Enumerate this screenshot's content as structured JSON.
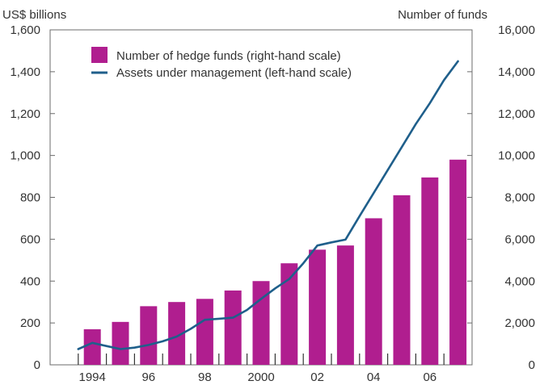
{
  "chart_data": {
    "type": "bar+line",
    "left_axis_title": "US$ billions",
    "right_axis_title": "Number of funds",
    "left_ylim": [
      0,
      1600
    ],
    "right_ylim": [
      0,
      16000
    ],
    "left_ticks": [
      "0",
      "200",
      "400",
      "600",
      "800",
      "1,000",
      "1,200",
      "1,400",
      "1,600"
    ],
    "right_ticks": [
      "0",
      "2,000",
      "4,000",
      "6,000",
      "8,000",
      "10,000",
      "12,000",
      "14,000",
      "16,000"
    ],
    "x_tick_labels": [
      "1994",
      "96",
      "98",
      "2000",
      "02",
      "04",
      "06"
    ],
    "categories": [
      "1994",
      "1995",
      "1996",
      "1997",
      "1998",
      "1999",
      "2000",
      "2001",
      "2002",
      "2003",
      "2004",
      "2005",
      "2006",
      "2007"
    ],
    "series": [
      {
        "name": "Number of hedge funds (right-hand scale)",
        "type": "bar",
        "axis": "right",
        "color": "#b01e8f",
        "values": [
          1700,
          2050,
          2800,
          3000,
          3150,
          3550,
          4000,
          4850,
          5500,
          5700,
          7000,
          8100,
          8950,
          9800
        ]
      },
      {
        "name": "Assets under management (left-hand scale)",
        "type": "line",
        "axis": "left",
        "color": "#1f5f8b",
        "x": [
          1993.5,
          1994,
          1994.5,
          1995,
          1995.5,
          1996,
          1996.5,
          1997,
          1997.5,
          1998,
          1998.5,
          1999,
          1999.5,
          2000,
          2000.5,
          2001,
          2001.5,
          2002,
          2002.5,
          2003,
          2003.5,
          2004,
          2004.5,
          2005,
          2005.5,
          2006,
          2006.5,
          2007
        ],
        "values": [
          75,
          105,
          90,
          75,
          82,
          95,
          112,
          135,
          172,
          215,
          220,
          225,
          262,
          315,
          365,
          410,
          485,
          570,
          585,
          598,
          710,
          820,
          930,
          1040,
          1150,
          1250,
          1360,
          1450
        ]
      }
    ],
    "legend_position": "top-left",
    "grid": false
  }
}
